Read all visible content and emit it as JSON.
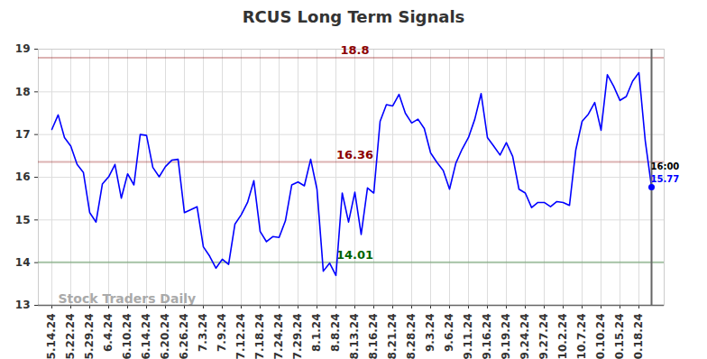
{
  "chart_data": {
    "type": "line",
    "title": "RCUS Long Term Signals",
    "categories": [
      "5.14.24",
      null,
      null,
      "5.22.24",
      null,
      null,
      "5.29.24",
      null,
      null,
      "6.4.24",
      null,
      null,
      "6.10.24",
      null,
      null,
      "6.14.24",
      null,
      null,
      "6.20.24",
      null,
      null,
      "6.26.24",
      null,
      null,
      "7.3.24",
      null,
      null,
      "7.9.24",
      null,
      null,
      "7.12.24",
      null,
      null,
      "7.18.24",
      null,
      null,
      "7.24.24",
      null,
      null,
      "7.29.24",
      null,
      null,
      "8.1.24",
      null,
      null,
      "8.8.24",
      null,
      null,
      "8.13.24",
      null,
      null,
      "8.16.24",
      null,
      null,
      "8.21.24",
      null,
      null,
      "8.28.24",
      null,
      null,
      "9.3.24",
      null,
      null,
      "9.6.24",
      null,
      null,
      "9.11.24",
      null,
      null,
      "9.16.24",
      null,
      null,
      "9.19.24",
      null,
      null,
      "9.24.24",
      null,
      null,
      "9.27.24",
      null,
      null,
      "10.2.24",
      null,
      null,
      "10.7.24",
      null,
      null,
      "10.10.24",
      null,
      null,
      "10.15.24",
      null,
      null,
      "10.18.24",
      null,
      null
    ],
    "values": [
      17.12,
      17.46,
      16.93,
      16.73,
      16.3,
      16.11,
      15.17,
      14.95,
      15.84,
      16.01,
      16.3,
      15.51,
      16.08,
      15.82,
      17.0,
      16.98,
      16.23,
      16.01,
      16.25,
      16.4,
      16.42,
      15.17,
      15.24,
      15.31,
      14.37,
      14.15,
      13.87,
      14.08,
      13.96,
      14.9,
      15.12,
      15.41,
      15.92,
      14.73,
      14.49,
      14.61,
      14.59,
      14.98,
      15.82,
      15.89,
      15.8,
      16.42,
      15.72,
      13.8,
      13.99,
      13.7,
      15.63,
      14.95,
      15.65,
      14.66,
      15.75,
      15.63,
      17.31,
      17.7,
      17.67,
      17.94,
      17.5,
      17.27,
      17.36,
      17.14,
      16.57,
      16.35,
      16.16,
      15.72,
      16.33,
      16.66,
      16.93,
      17.36,
      17.96,
      16.93,
      16.73,
      16.52,
      16.81,
      16.49,
      15.72,
      15.63,
      15.29,
      15.41,
      15.41,
      15.31,
      15.43,
      15.41,
      15.34,
      16.64,
      17.31,
      17.48,
      17.75,
      17.1,
      18.4,
      18.13,
      17.8,
      17.89,
      18.25,
      18.45,
      16.86,
      15.77
    ],
    "color": "#0000ff",
    "ylim": [
      13,
      19
    ],
    "yticks": [
      13,
      14,
      15,
      16,
      17,
      18,
      19
    ],
    "grid": true,
    "levels": [
      {
        "value": 18.8,
        "label": "18.8",
        "color": "#8b0000"
      },
      {
        "value": 16.36,
        "label": "16.36",
        "color": "#8b0000"
      },
      {
        "value": 14.01,
        "label": "14.01",
        "color": "#006400"
      }
    ],
    "watermark": "Stock Traders Daily",
    "time_label": "16:00"
  }
}
